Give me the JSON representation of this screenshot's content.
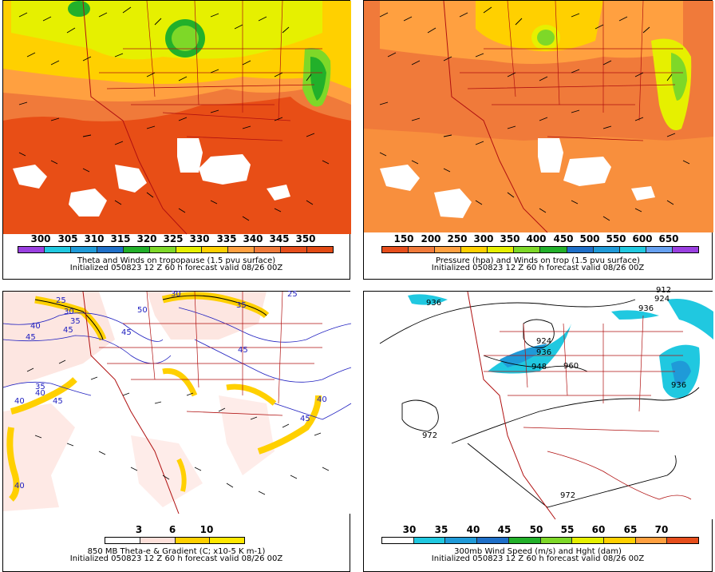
{
  "panels": [
    {
      "title": "Theta and Winds on tropopause (1.5 pvu surface)",
      "subtitle": "Initialized 050823 12 Z  60 h forecast valid 08/26 00Z",
      "colorbar_labels": [
        "300",
        "305",
        "310",
        "315",
        "320",
        "325",
        "330",
        "335",
        "340",
        "345",
        "350"
      ],
      "colorbar_colors": [
        "#9a40e0",
        "#20c8e0",
        "#1f9ad8",
        "#1e6fc8",
        "#22b02a",
        "#7ed828",
        "#e6f000",
        "#ffd000",
        "#ffa040",
        "#f07a3a",
        "#e64e1c",
        "#e24a14"
      ]
    },
    {
      "title": "Pressure (hpa) and Winds on trop (1.5 pvu surface)",
      "subtitle": "Initialized 050823 12 Z  60 h forecast valid 08/26 00Z",
      "colorbar_labels": [
        "150",
        "200",
        "250",
        "300",
        "350",
        "400",
        "450",
        "500",
        "550",
        "600",
        "650"
      ],
      "colorbar_colors": [
        "#e64e1c",
        "#f07a3a",
        "#ffa040",
        "#ffd000",
        "#e6f000",
        "#7ed828",
        "#22b02a",
        "#1e6fc8",
        "#1f9ad8",
        "#20c8e0",
        "#66a0f0",
        "#9a40e0"
      ]
    },
    {
      "title": "850 MB Theta-e & Gradient (C; x10-5 K m-1)",
      "subtitle": "Initialized 050823 12 Z  60 h forecast valid 08/26 00Z",
      "colorbar_labels": [
        "3",
        "6",
        "10"
      ],
      "colorbar_colors": [
        "#ffffff",
        "#fde0da",
        "#ffd000",
        "#ffe800"
      ],
      "contour_labels": [
        "25",
        "30",
        "35",
        "40",
        "45",
        "50",
        "45",
        "45",
        "35",
        "40",
        "45",
        "40",
        "25",
        "30",
        "35",
        "45",
        "40",
        "45",
        "40"
      ]
    },
    {
      "title": "300mb Wind Speed (m/s) and Hght (dam)",
      "subtitle": "Initialized 050823 12 Z  60 h forecast valid 08/26 00Z",
      "colorbar_labels": [
        "30",
        "35",
        "40",
        "45",
        "50",
        "55",
        "60",
        "65",
        "70"
      ],
      "colorbar_colors": [
        "#ffffff",
        "#20c8e0",
        "#1f9ad8",
        "#1e6fc8",
        "#22b02a",
        "#7ed828",
        "#e6f000",
        "#ffd000",
        "#ffa040",
        "#e64e1c"
      ],
      "height_labels": [
        "936",
        "912",
        "924",
        "936",
        "924",
        "936",
        "948",
        "960",
        "936",
        "972",
        "972"
      ]
    }
  ]
}
